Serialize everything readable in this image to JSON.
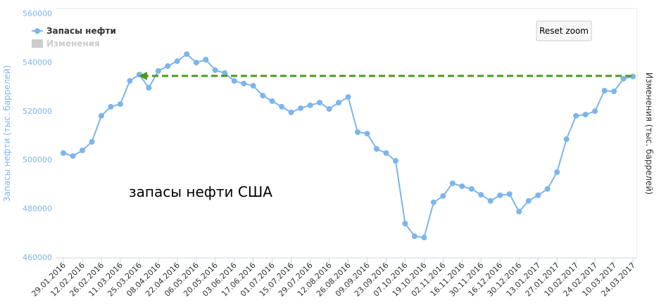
{
  "chart_data": {
    "type": "line",
    "categories": [
      "29.01.2016",
      null,
      "12.02.2016",
      null,
      "26.02.2016",
      null,
      "11.03.2016",
      null,
      "25.03.2016",
      null,
      "08.04.2016",
      null,
      "22.04.2016",
      null,
      "06.05.2016",
      null,
      "20.05.2016",
      null,
      "03.06.2016",
      null,
      "17.06.2016",
      null,
      "01.07.2016",
      null,
      "15.07.2016",
      null,
      "29.07.2016",
      null,
      "12.08.2016",
      null,
      "26.08.2016",
      null,
      "09.09.2016",
      null,
      "23.09.2016",
      null,
      "07.10.2016",
      null,
      "19.10.2016",
      null,
      "02.11.2016",
      null,
      "16.11.2016",
      null,
      "30.11.2016",
      null,
      "16.12.2016",
      null,
      "30.12.2016",
      null,
      "13.01.2017",
      null,
      "27.01.2017",
      null,
      "10.02.2017",
      null,
      "24.02.2017",
      null,
      "10.03.2017",
      null,
      "24.03.2017"
    ],
    "series": [
      {
        "name": "Запасы нефти",
        "color": "#7cb5ec",
        "values": [
          502700,
          501500,
          503800,
          507300,
          518000,
          521700,
          522800,
          532300,
          534900,
          529500,
          536400,
          538400,
          540400,
          543300,
          539800,
          541000,
          536700,
          535500,
          532300,
          531200,
          530300,
          526300,
          524000,
          521700,
          519400,
          521100,
          522300,
          523400,
          520800,
          523400,
          525700,
          511300,
          510700,
          504400,
          502700,
          499500,
          473800,
          468600,
          468100,
          482500,
          485100,
          490300,
          489100,
          488000,
          485600,
          483100,
          485400,
          485900,
          478700,
          483100,
          485400,
          488000,
          494900,
          508400,
          518000,
          518500,
          519900,
          528300,
          528000,
          533200,
          534100
        ]
      },
      {
        "name": "Изменения",
        "color": "#cccccc",
        "axis": "y2",
        "visible": false
      }
    ],
    "ylabel": "Запасы нефти (тыс. баррелей)",
    "y2label": "Изменения (тыс. баррелей)",
    "ylim": [
      460000,
      560000
    ],
    "yticks": [
      460000,
      480000,
      500000,
      520000,
      540000,
      560000
    ],
    "annotation": "запасы нефти США",
    "reset_button": "Reset zoom",
    "grid": false
  }
}
